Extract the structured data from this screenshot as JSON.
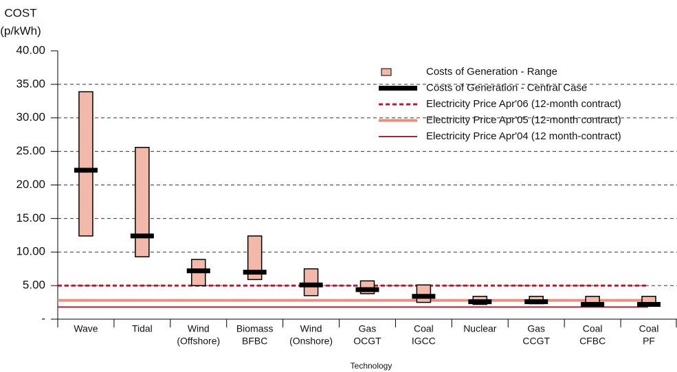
{
  "chart_data": {
    "type": "range",
    "y_label": [
      "COST",
      "(p/kWh)"
    ],
    "x_label": "Technology",
    "categories": [
      [
        "Wave"
      ],
      [
        "Tidal"
      ],
      [
        "Wind",
        "(Offshore)"
      ],
      [
        "Biomass",
        "BFBC"
      ],
      [
        "Wind",
        "(Onshore)"
      ],
      [
        "Gas",
        "OCGT"
      ],
      [
        "Coal",
        "IGCC"
      ],
      [
        "Nuclear"
      ],
      [
        "Gas",
        "CCGT"
      ],
      [
        "Coal",
        "CFBC"
      ],
      [
        "Coal",
        "PF"
      ]
    ],
    "ylim": [
      0,
      40
    ],
    "yticks": [
      {
        "value": 0,
        "label": "-"
      },
      {
        "value": 5,
        "label": "5.00"
      },
      {
        "value": 10,
        "label": "10.00"
      },
      {
        "value": 15,
        "label": "15.00"
      },
      {
        "value": 20,
        "label": "20.00"
      },
      {
        "value": 25,
        "label": "25.00"
      },
      {
        "value": 30,
        "label": "30.00"
      },
      {
        "value": 35,
        "label": "35.00"
      },
      {
        "value": 40,
        "label": "40.00"
      }
    ],
    "grid": true,
    "range": {
      "name": "Costs of Generation - Range",
      "color": "#f2b9aa",
      "low": [
        12.4,
        9.3,
        5.0,
        5.9,
        3.5,
        3.8,
        2.5,
        2.2,
        2.3,
        2.0,
        2.0
      ],
      "high": [
        33.9,
        25.6,
        8.9,
        12.4,
        7.5,
        5.7,
        5.1,
        3.4,
        3.4,
        3.4,
        3.4
      ]
    },
    "central": {
      "name": "Costs of Generation - Central Case",
      "color": "#000000",
      "values": [
        22.2,
        12.4,
        7.2,
        7.0,
        5.1,
        4.4,
        3.4,
        2.6,
        2.6,
        2.2,
        2.2
      ]
    },
    "prices": [
      {
        "name": "Electricity Price Apr'06 (12-month contract)",
        "color": "#c8102e",
        "style": "dotted",
        "value": 5.0
      },
      {
        "name": "Electricity Price Apr'05 (12-month contract)",
        "color": "#e8907e",
        "style": "thick",
        "value": 2.8
      },
      {
        "name": "Electricity Price Apr'04 (12 month-contract)",
        "color": "#b01f35",
        "style": "thin",
        "value": 1.8
      }
    ]
  }
}
